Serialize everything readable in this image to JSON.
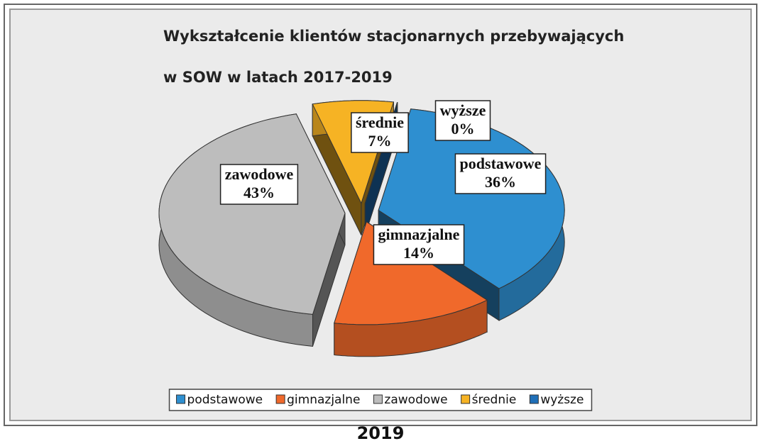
{
  "chart_data": {
    "type": "pie",
    "title": [
      "Wykształcenie klientów stacjonarnych przebywających",
      "w SOW w latach 2017-2019"
    ],
    "categories": [
      "podstawowe",
      "gimnazjalne",
      "zawodowe",
      "średnie",
      "wyższe"
    ],
    "values": [
      36,
      14,
      43,
      7,
      0
    ],
    "value_labels": [
      "36%",
      "14%",
      "43%",
      "7%",
      "0%"
    ],
    "colors": [
      "#2e8fd0",
      "#f0692b",
      "#bdbdbd",
      "#f6b324",
      "#1f6fb8"
    ],
    "legend": "bottom",
    "caption": "2019"
  }
}
